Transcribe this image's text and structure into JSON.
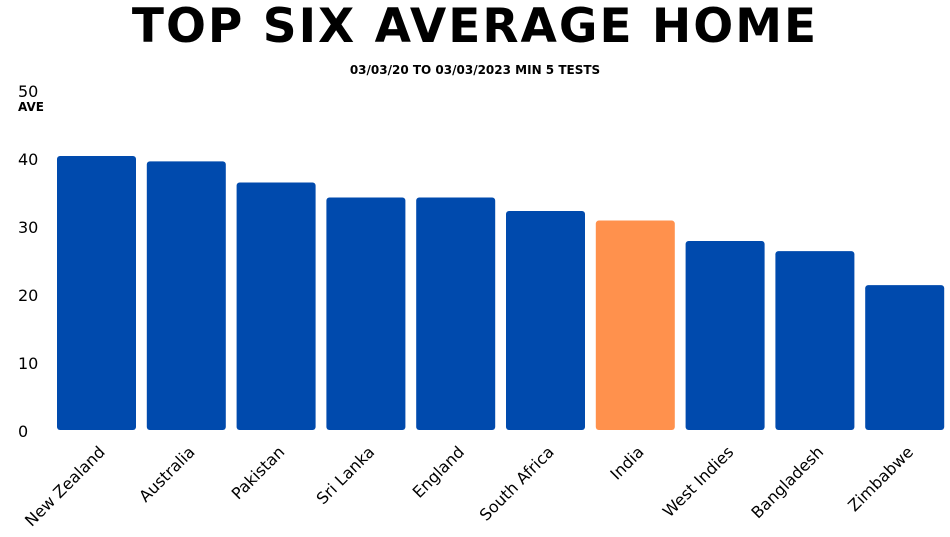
{
  "chart_data": {
    "type": "bar",
    "title": "TOP SIX AVERAGE HOME",
    "subtitle": "03/03/20 TO 03/03/2023 MIN 5 TESTS",
    "ylabel": "AVE",
    "xlabel": "",
    "ylim": [
      0,
      50
    ],
    "yticks": [
      0,
      10,
      20,
      30,
      40,
      50
    ],
    "grid": false,
    "categories": [
      "New Zealand",
      "Australia",
      "Pakistan",
      "Sri Lanka",
      "England",
      "South Africa",
      "India",
      "West Indies",
      "Bangladesh",
      "Zimbabwe"
    ],
    "values": [
      40.3,
      39.5,
      36.4,
      34.2,
      34.2,
      32.2,
      30.8,
      27.8,
      26.3,
      21.3
    ],
    "colors": [
      "#004AAD",
      "#004AAD",
      "#004AAD",
      "#004AAD",
      "#004AAD",
      "#004AAD",
      "#FF914D",
      "#004AAD",
      "#004AAD",
      "#004AAD"
    ]
  }
}
